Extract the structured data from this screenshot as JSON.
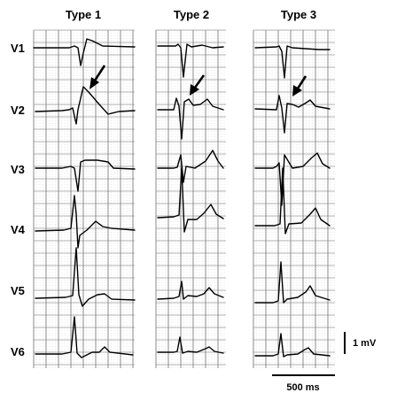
{
  "columns": [
    "Type 1",
    "Type 2",
    "Type 3"
  ],
  "leads": [
    "V1",
    "V2",
    "V3",
    "V4",
    "V5",
    "V6"
  ],
  "scale": {
    "voltage_label": "1 mV",
    "time_label": "500 ms"
  },
  "colors": {
    "trace": "#000000",
    "grid_major": "#6f6f6f",
    "grid_minor": "#c9c9c9"
  }
}
